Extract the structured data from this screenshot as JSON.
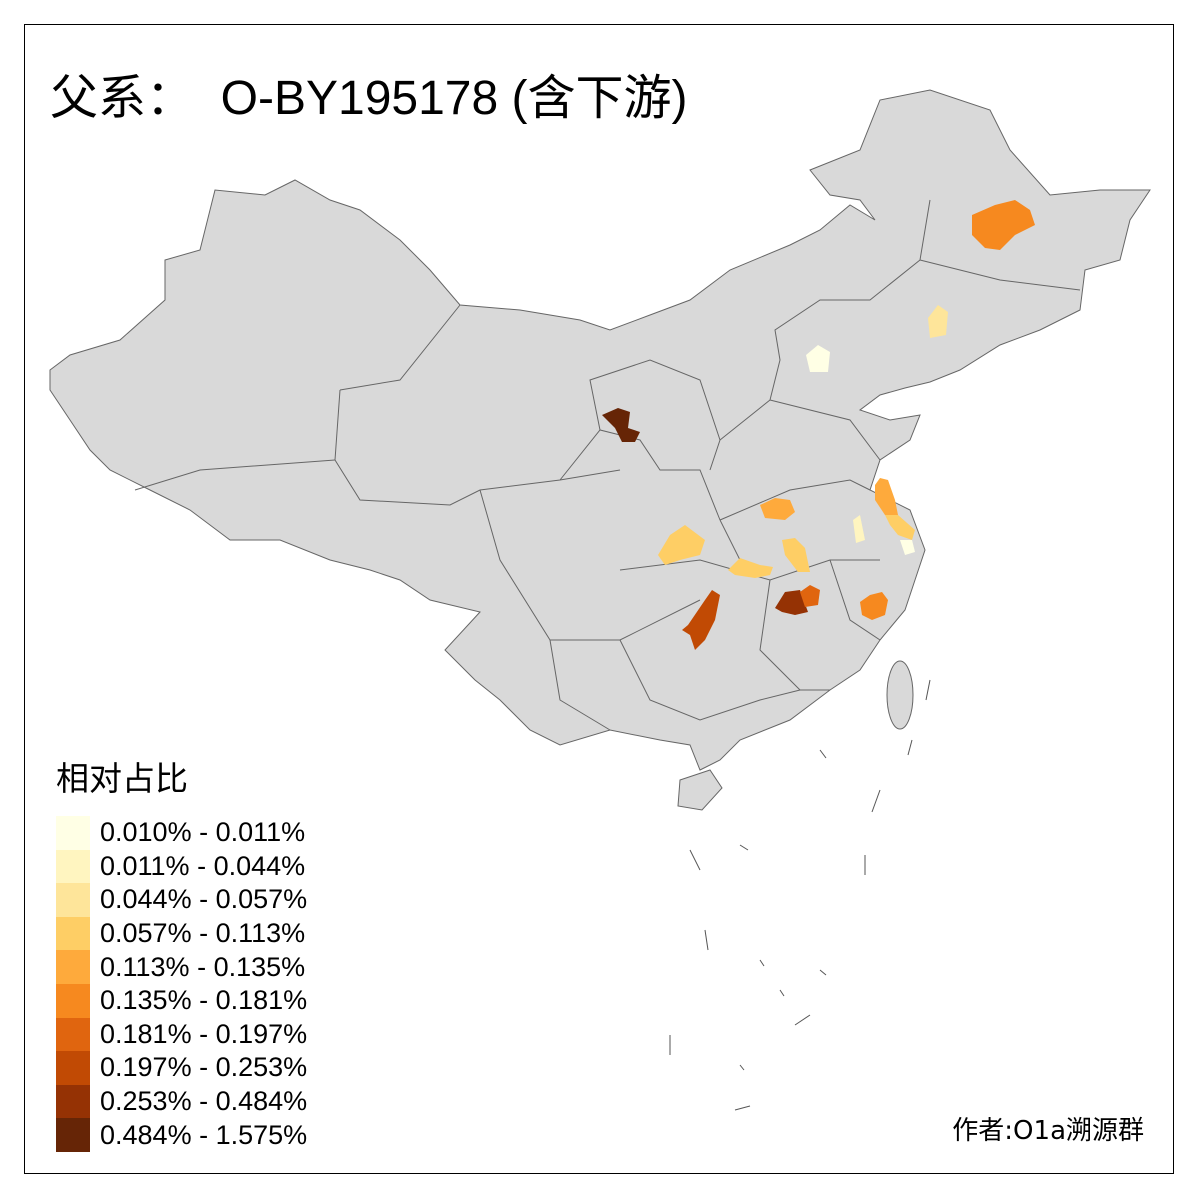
{
  "title": "父系：  O-BY195178 (含下游)",
  "legend": {
    "title": "相对占比",
    "items": [
      {
        "label": "0.010% - 0.011%",
        "color": "#FFFFE5"
      },
      {
        "label": "0.011% - 0.044%",
        "color": "#FFF5C0"
      },
      {
        "label": "0.044% - 0.057%",
        "color": "#FEE59A"
      },
      {
        "label": "0.057% - 0.113%",
        "color": "#FECE65"
      },
      {
        "label": "0.113% - 0.135%",
        "color": "#FEAA3C"
      },
      {
        "label": "0.135% - 0.181%",
        "color": "#F6891F"
      },
      {
        "label": "0.181% - 0.197%",
        "color": "#E0650F"
      },
      {
        "label": "0.197% - 0.253%",
        "color": "#C14A04"
      },
      {
        "label": "0.253% - 0.484%",
        "color": "#953204"
      },
      {
        "label": "0.484% - 1.575%",
        "color": "#662506"
      }
    ]
  },
  "colors": {
    "land": "#D9D9D9",
    "border": "#666666",
    "no_data": "#D9D9D9"
  },
  "credit": "作者:O1a溯源群"
}
